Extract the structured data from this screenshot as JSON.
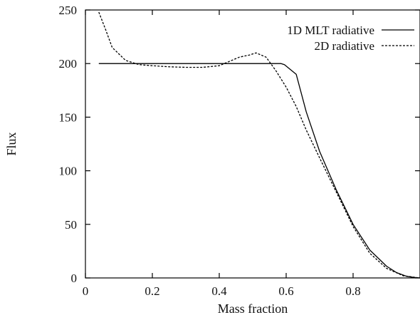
{
  "chart_data": {
    "type": "line",
    "title": "",
    "xlabel": "Mass fraction",
    "ylabel": "Flux",
    "xlim": [
      0,
      1
    ],
    "ylim": [
      0,
      250
    ],
    "xticks": [
      0,
      0.2,
      0.4,
      0.6,
      0.8
    ],
    "yticks": [
      0,
      50,
      100,
      150,
      200,
      250
    ],
    "xtick_labels": [
      "0",
      "0.2",
      "0.4",
      "0.6",
      "0.8"
    ],
    "ytick_labels": [
      "0",
      "50",
      "100",
      "150",
      "200",
      "250"
    ],
    "grid": false,
    "legend_position": "top-right",
    "series": [
      {
        "name": "1D MLT radiative",
        "style": "solid",
        "color": "#000000",
        "x": [
          0.04,
          0.2,
          0.4,
          0.585,
          0.595,
          0.63,
          0.66,
          0.7,
          0.75,
          0.8,
          0.85,
          0.9,
          0.93,
          0.96,
          0.98,
          1.0
        ],
        "y": [
          200,
          200,
          200,
          200,
          199,
          190,
          155,
          118,
          82,
          50,
          26,
          11,
          5,
          1.5,
          0.5,
          0
        ]
      },
      {
        "name": "2D radiative",
        "style": "dashed",
        "color": "#000000",
        "x": [
          0.04,
          0.06,
          0.08,
          0.12,
          0.16,
          0.2,
          0.25,
          0.3,
          0.35,
          0.4,
          0.43,
          0.46,
          0.49,
          0.51,
          0.54,
          0.57,
          0.6,
          0.63,
          0.66,
          0.7,
          0.75,
          0.8,
          0.85,
          0.9,
          0.95,
          1.0
        ],
        "y": [
          248,
          232,
          215,
          203,
          199,
          198,
          197,
          196.5,
          196.5,
          198,
          202,
          206,
          208,
          210,
          206,
          193,
          178,
          160,
          138,
          112,
          80,
          48,
          23,
          9,
          2,
          0
        ]
      }
    ]
  }
}
